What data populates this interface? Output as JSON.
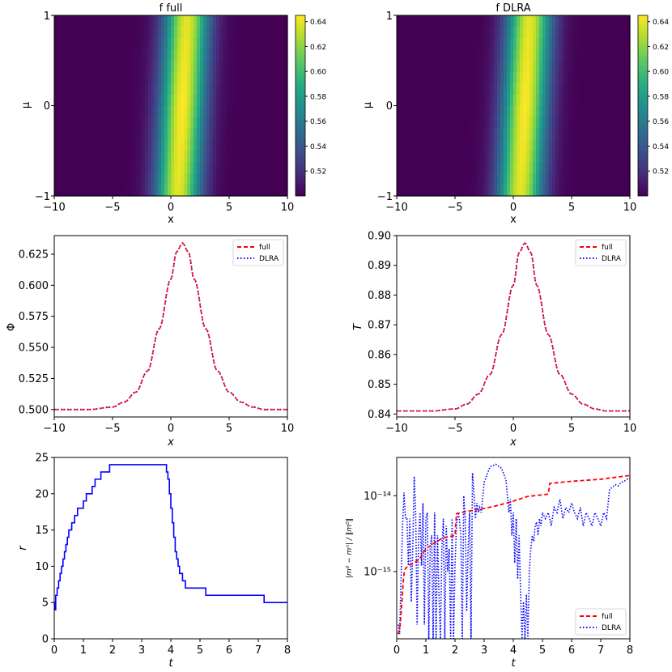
{
  "chart_data": [
    {
      "id": "f_full",
      "type": "heatmap",
      "title": "f full",
      "xlabel": "x",
      "ylabel": "μ",
      "xlim": [
        -10,
        10
      ],
      "ylim": [
        -1,
        1
      ],
      "xticks": [
        "−10",
        "−5",
        "0",
        "5",
        "10"
      ],
      "yticks": [
        "−1",
        "0",
        "1"
      ],
      "colorbar": {
        "vmin": 0.5,
        "vmax": 0.645,
        "ticks": [
          0.52,
          0.54,
          0.56,
          0.58,
          0.6,
          0.62,
          0.64
        ],
        "tick_labels": [
          "0.52",
          "0.54",
          "0.56",
          "0.58",
          "0.60",
          "0.62",
          "0.64"
        ]
      },
      "model": {
        "base": 0.5,
        "amplitude": 0.145,
        "center_at_mu_minus1": 0.6,
        "center_at_mu_plus1": 1.4,
        "width": 1.9
      }
    },
    {
      "id": "f_dlra",
      "type": "heatmap",
      "title": "f DLRA",
      "xlabel": "x",
      "ylabel": "μ",
      "xlim": [
        -10,
        10
      ],
      "ylim": [
        -1,
        1
      ],
      "xticks": [
        "−10",
        "−5",
        "0",
        "5",
        "10"
      ],
      "yticks": [
        "−1",
        "0",
        "1"
      ],
      "colorbar": {
        "vmin": 0.5,
        "vmax": 0.645,
        "ticks": [
          0.52,
          0.54,
          0.56,
          0.58,
          0.6,
          0.62,
          0.64
        ],
        "tick_labels": [
          "0.52",
          "0.54",
          "0.56",
          "0.58",
          "0.60",
          "0.62",
          "0.64"
        ]
      },
      "model": {
        "base": 0.5,
        "amplitude": 0.145,
        "center_at_mu_minus1": 0.6,
        "center_at_mu_plus1": 1.4,
        "width": 1.9
      }
    },
    {
      "id": "phi",
      "type": "line",
      "xlabel": "x",
      "ylabel": "Φ",
      "xlim": [
        -10,
        10
      ],
      "ylim": [
        0.494,
        0.64
      ],
      "xticks": [
        "−10",
        "−5",
        "0",
        "5",
        "10"
      ],
      "yticks": [
        "0.500",
        "0.525",
        "0.550",
        "0.575",
        "0.600",
        "0.625"
      ],
      "ytick_values": [
        0.5,
        0.525,
        0.55,
        0.575,
        0.6,
        0.625
      ],
      "legend": [
        "full",
        "DLRA"
      ],
      "series": [
        {
          "name": "full",
          "color": "#ff0000",
          "style": "dashed"
        },
        {
          "name": "DLRA",
          "color": "#0000ff",
          "style": "dotted"
        }
      ],
      "x": [
        -10,
        -7,
        -5,
        -4,
        -3,
        -2,
        -1,
        0,
        0.5,
        1,
        1.5,
        2,
        3,
        4,
        5,
        6,
        7,
        8,
        10
      ],
      "values": [
        0.5,
        0.5,
        0.502,
        0.506,
        0.514,
        0.531,
        0.565,
        0.605,
        0.627,
        0.634,
        0.627,
        0.605,
        0.565,
        0.531,
        0.514,
        0.506,
        0.502,
        0.5,
        0.5
      ]
    },
    {
      "id": "T",
      "type": "line",
      "xlabel": "x",
      "ylabel": "T",
      "xlim": [
        -10,
        10
      ],
      "ylim": [
        0.839,
        0.9
      ],
      "xticks": [
        "−10",
        "−5",
        "0",
        "5",
        "10"
      ],
      "yticks": [
        "0.84",
        "0.85",
        "0.86",
        "0.87",
        "0.88",
        "0.89",
        "0.90"
      ],
      "ytick_values": [
        0.84,
        0.85,
        0.86,
        0.87,
        0.88,
        0.89,
        0.9
      ],
      "legend": [
        "full",
        "DLRA"
      ],
      "series": [
        {
          "name": "full",
          "color": "#ff0000",
          "style": "dashed"
        },
        {
          "name": "DLRA",
          "color": "#0000ff",
          "style": "dotted"
        }
      ],
      "x": [
        -10,
        -7,
        -5,
        -4,
        -3,
        -2,
        -1,
        0,
        0.5,
        1,
        1.5,
        2,
        3,
        4,
        5,
        6,
        7,
        8,
        10
      ],
      "values": [
        0.841,
        0.841,
        0.8417,
        0.8433,
        0.8467,
        0.8533,
        0.8667,
        0.8833,
        0.8943,
        0.8975,
        0.8943,
        0.8833,
        0.8667,
        0.8533,
        0.8467,
        0.8433,
        0.8417,
        0.841,
        0.841
      ]
    },
    {
      "id": "rank",
      "type": "line",
      "xlabel": "t",
      "ylabel": "r",
      "xlim": [
        0,
        8
      ],
      "ylim": [
        0,
        25
      ],
      "xticks": [
        "0",
        "1",
        "2",
        "3",
        "4",
        "5",
        "6",
        "7",
        "8"
      ],
      "yticks": [
        "0",
        "5",
        "10",
        "15",
        "20",
        "25"
      ],
      "ytick_values": [
        0,
        5,
        10,
        15,
        20,
        25
      ],
      "series": [
        {
          "name": "r",
          "color": "#0000ff",
          "style": "steps"
        }
      ],
      "x": [
        0,
        0.02,
        0.05,
        0.1,
        0.15,
        0.2,
        0.25,
        0.3,
        0.35,
        0.4,
        0.45,
        0.5,
        0.6,
        0.7,
        0.8,
        0.9,
        1.0,
        1.1,
        1.2,
        1.3,
        1.4,
        1.5,
        1.6,
        1.7,
        1.9,
        3.8,
        3.85,
        3.9,
        3.95,
        4.0,
        4.05,
        4.1,
        4.15,
        4.2,
        4.25,
        4.3,
        4.35,
        4.4,
        4.5,
        4.7,
        5.2,
        7.2,
        8.0
      ],
      "values": [
        5,
        4,
        6,
        7,
        8,
        9,
        10,
        11,
        12,
        13,
        14,
        15,
        16,
        17,
        18,
        18,
        19,
        20,
        20,
        21,
        22,
        22,
        23,
        23,
        24,
        24,
        23,
        22,
        20,
        18,
        16,
        14,
        12,
        11,
        10,
        9,
        9,
        8,
        7,
        7,
        6,
        5,
        5
      ]
    },
    {
      "id": "mass_error",
      "type": "line",
      "xlabel": "t",
      "ylabel": "|m⁰ − mⁿ| / ‖m⁰‖",
      "yscale": "log",
      "xlim": [
        0,
        8
      ],
      "ylim": [
        1.3e-16,
        3.2e-14
      ],
      "xticks": [
        "0",
        "1",
        "2",
        "3",
        "4",
        "5",
        "6",
        "7",
        "8"
      ],
      "yticks": [
        "10⁻¹⁵",
        "10⁻¹⁴"
      ],
      "ytick_values": [
        1e-15,
        1e-14
      ],
      "legend": [
        "full",
        "DLRA"
      ],
      "series": [
        {
          "name": "full",
          "color": "#ff0000",
          "style": "dashed"
        },
        {
          "name": "DLRA",
          "color": "#0000ff",
          "style": "dotted"
        }
      ],
      "full_x": [
        0.05,
        0.12,
        0.18,
        0.22,
        0.26,
        0.3,
        0.4,
        0.6,
        0.8,
        1.0,
        1.3,
        1.6,
        2.0,
        2.05,
        2.2,
        2.5,
        3.0,
        3.5,
        4.0,
        4.5,
        5.2,
        5.25,
        5.6,
        6.0,
        6.5,
        7.0,
        7.5,
        8.0
      ],
      "full_values": [
        1.5e-16,
        2e-16,
        4e-16,
        7e-16,
        1e-15,
        1.1e-15,
        1.2e-15,
        1.3e-15,
        1.5e-15,
        2e-15,
        2.4e-15,
        2.8e-15,
        3e-15,
        5.8e-15,
        6e-15,
        6.3e-15,
        6.8e-15,
        7.5e-15,
        8.5e-15,
        9.8e-15,
        1.05e-14,
        1.45e-14,
        1.5e-14,
        1.55e-14,
        1.6e-14,
        1.65e-14,
        1.75e-14,
        1.85e-14
      ],
      "dlra_x": [
        0.05,
        0.1,
        0.15,
        0.2,
        0.25,
        0.3,
        0.35,
        0.4,
        0.45,
        0.5,
        0.55,
        0.6,
        0.65,
        0.7,
        0.75,
        0.8,
        0.85,
        0.9,
        0.95,
        1.0,
        1.05,
        1.1,
        1.15,
        1.2,
        1.25,
        1.3,
        1.35,
        1.4,
        1.45,
        1.5,
        1.55,
        1.6,
        1.65,
        1.7,
        1.75,
        1.8,
        1.85,
        1.9,
        1.95,
        2.0,
        2.05,
        2.1,
        2.15,
        2.2,
        2.25,
        2.3,
        2.35,
        2.4,
        2.45,
        2.5,
        2.55,
        2.6,
        2.65,
        2.7,
        2.75,
        2.8,
        2.85,
        2.9,
        3.0,
        3.2,
        3.4,
        3.6,
        3.75,
        3.85,
        3.9,
        3.95,
        4.0,
        4.05,
        4.1,
        4.15,
        4.2,
        4.25,
        4.3,
        4.35,
        4.4,
        4.45,
        4.5,
        4.55,
        4.6,
        4.65,
        4.7,
        4.75,
        4.8,
        4.85,
        4.9,
        4.95,
        5.0,
        5.1,
        5.2,
        5.3,
        5.4,
        5.5,
        5.6,
        5.7,
        5.8,
        5.9,
        6.0,
        6.1,
        6.2,
        6.3,
        6.4,
        6.5,
        6.6,
        6.7,
        6.8,
        6.9,
        7.0,
        7.1,
        7.2,
        7.3,
        7.4,
        7.5,
        7.6,
        7.7,
        7.8,
        7.9,
        8.0
      ],
      "dlra_values": [
        2e-16,
        1.5e-16,
        8e-16,
        4e-15,
        1.1e-14,
        5e-15,
        5e-15,
        1.2e-15,
        5e-15,
        4e-16,
        2e-15,
        1.8e-14,
        6e-15,
        2e-16,
        3e-15,
        6e-15,
        1.2e-15,
        8e-15,
        2e-16,
        5e-15,
        6e-15,
        1.3e-16,
        2e-15,
        3e-15,
        1.3e-16,
        6e-15,
        1.3e-16,
        3e-15,
        5e-16,
        1.3e-16,
        2e-15,
        5e-15,
        1.3e-16,
        4e-15,
        1e-15,
        2e-15,
        1.3e-16,
        5e-15,
        1.3e-16,
        1.2e-15,
        4e-15,
        6e-15,
        5e-15,
        3e-15,
        1.3e-16,
        1e-14,
        5e-15,
        3e-16,
        2e-15,
        6e-15,
        1.3e-16,
        2e-14,
        1.1e-14,
        5e-15,
        8e-15,
        6e-15,
        7e-15,
        6e-15,
        1.5e-14,
        2.4e-14,
        2.6e-14,
        2.3e-14,
        1.6e-14,
        6e-15,
        9e-15,
        3e-15,
        6e-15,
        1.3e-15,
        5e-15,
        8e-16,
        3e-15,
        5e-16,
        1.3e-16,
        4e-16,
        1.3e-16,
        5e-16,
        1.3e-16,
        1e-15,
        2e-15,
        3e-15,
        2.5e-15,
        4e-15,
        4.5e-15,
        3e-15,
        5e-15,
        4e-15,
        6e-15,
        5e-15,
        6e-15,
        4e-15,
        7e-15,
        6e-15,
        9e-15,
        5e-15,
        7e-15,
        6e-15,
        8e-15,
        6e-15,
        5e-15,
        7e-15,
        4e-15,
        6e-15,
        5e-15,
        4e-15,
        6e-15,
        5e-15,
        4e-15,
        6e-15,
        5e-15,
        1.2e-14,
        1.3e-14,
        1.4e-14,
        1.35e-14,
        1.5e-14,
        1.55e-14,
        1.65e-14,
        1.7e-14
      ]
    }
  ]
}
